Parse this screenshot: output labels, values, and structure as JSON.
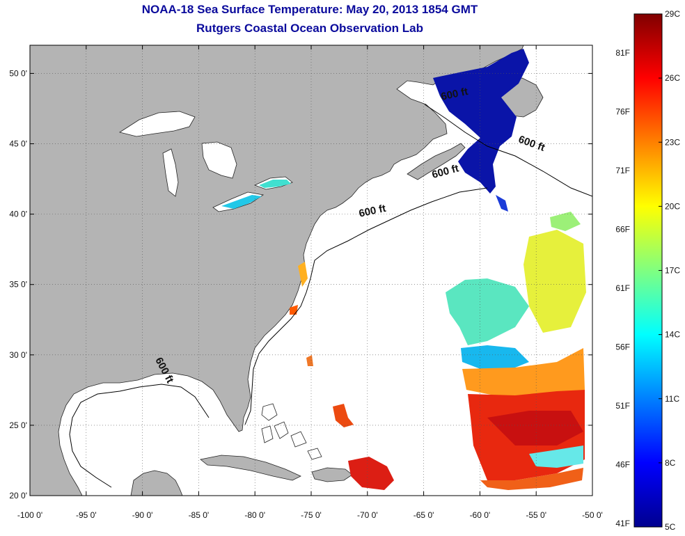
{
  "title": "NOAA-18 Sea Surface Temperature:  May 20, 2013 1854 GMT",
  "subtitle": "Rutgers Coastal Ocean Observation Lab",
  "map": {
    "lon_range": [
      -100,
      -50
    ],
    "lat_range": [
      20,
      52
    ],
    "lon_ticks": [
      -100,
      -95,
      -90,
      -85,
      -80,
      -75,
      -70,
      -65,
      -60,
      -55,
      -50
    ],
    "lon_labels": [
      "-100 0'",
      "-95 0'",
      "-90 0'",
      "-85 0'",
      "-80 0'",
      "-75 0'",
      "-70 0'",
      "-65 0'",
      "-60 0'",
      "-55 0'",
      "-50 0'"
    ],
    "lat_ticks": [
      20,
      25,
      30,
      35,
      40,
      45,
      50
    ],
    "lat_labels": [
      "20 0'",
      "25 0'",
      "30 0'",
      "35 0'",
      "40 0'",
      "45 0'",
      "50 0'"
    ],
    "grid": "dotted",
    "land_color": "#b4b4b4",
    "contour_label": "600 ft",
    "contour_label_positions": [
      {
        "lon": -62.2,
        "lat": 48.3
      },
      {
        "lon": -55.5,
        "lat": 44.8
      },
      {
        "lon": -63.0,
        "lat": 42.8
      },
      {
        "lon": -69.5,
        "lat": 40.0
      },
      {
        "lon": -88.3,
        "lat": 28.8
      }
    ]
  },
  "colorbar": {
    "celsius_labels": [
      "29C",
      "26C",
      "23C",
      "20C",
      "17C",
      "14C",
      "11C",
      "8C",
      "5C"
    ],
    "fahrenheit_labels": [
      "81F",
      "76F",
      "71F",
      "66F",
      "61F",
      "56F",
      "51F",
      "46F",
      "41F"
    ],
    "min_c": 5,
    "max_c": 29,
    "colors": [
      "#00008f",
      "#0000ff",
      "#0080ff",
      "#00ffff",
      "#80ff80",
      "#ffff00",
      "#ff8000",
      "#ff0000",
      "#800000"
    ]
  }
}
